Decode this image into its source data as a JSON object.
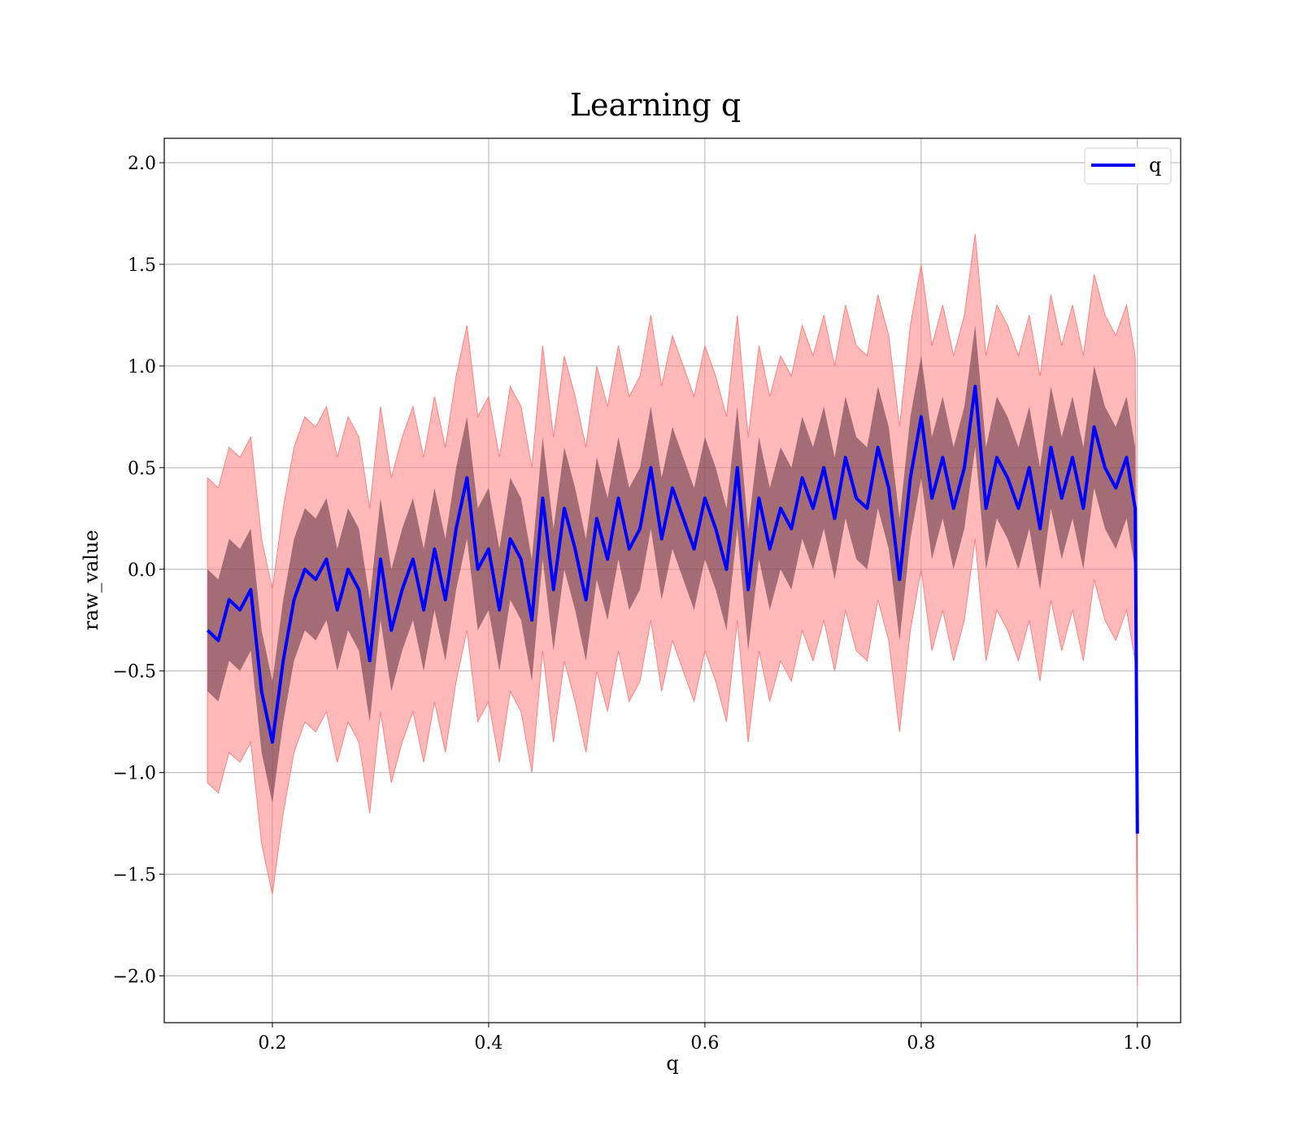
{
  "chart_data": {
    "type": "line",
    "title": "Learning q",
    "xlabel": "q",
    "ylabel": "raw_value",
    "xlim": [
      0.1,
      1.04
    ],
    "ylim": [
      -2.23,
      2.12
    ],
    "x_ticks": [
      0.2,
      0.4,
      0.6,
      0.8,
      1.0
    ],
    "x_tick_labels": [
      "0.2",
      "0.4",
      "0.6",
      "0.8",
      "1.0"
    ],
    "y_ticks": [
      -2.0,
      -1.5,
      -1.0,
      -0.5,
      0.0,
      0.5,
      1.0,
      1.5,
      2.0
    ],
    "y_tick_labels": [
      "−2.0",
      "−1.5",
      "−1.0",
      "−0.5",
      "0.0",
      "0.5",
      "1.0",
      "1.5",
      "2.0"
    ],
    "grid": true,
    "legend": {
      "position": "top-right",
      "entries": [
        "q"
      ]
    },
    "colors": {
      "line": "#0000ff",
      "outer_band": "#ff8080",
      "inner_band": "#5a3040",
      "grid": "#b0b0b0"
    },
    "series": [
      {
        "name": "q",
        "x": [
          0.14,
          0.15,
          0.16,
          0.17,
          0.18,
          0.19,
          0.2,
          0.21,
          0.22,
          0.23,
          0.24,
          0.25,
          0.26,
          0.27,
          0.28,
          0.29,
          0.3,
          0.31,
          0.32,
          0.33,
          0.34,
          0.35,
          0.36,
          0.37,
          0.38,
          0.39,
          0.4,
          0.41,
          0.42,
          0.43,
          0.44,
          0.45,
          0.46,
          0.47,
          0.48,
          0.49,
          0.5,
          0.51,
          0.52,
          0.53,
          0.54,
          0.55,
          0.56,
          0.57,
          0.58,
          0.59,
          0.6,
          0.61,
          0.62,
          0.63,
          0.64,
          0.65,
          0.66,
          0.67,
          0.68,
          0.69,
          0.7,
          0.71,
          0.72,
          0.73,
          0.74,
          0.75,
          0.76,
          0.77,
          0.78,
          0.79,
          0.8,
          0.81,
          0.82,
          0.83,
          0.84,
          0.85,
          0.86,
          0.87,
          0.88,
          0.89,
          0.9,
          0.91,
          0.92,
          0.93,
          0.94,
          0.95,
          0.96,
          0.97,
          0.98,
          0.99,
          0.998,
          1.0
        ],
        "values": [
          -0.3,
          -0.35,
          -0.15,
          -0.2,
          -0.1,
          -0.6,
          -0.85,
          -0.45,
          -0.15,
          0.0,
          -0.05,
          0.05,
          -0.2,
          0.0,
          -0.1,
          -0.45,
          0.05,
          -0.3,
          -0.1,
          0.05,
          -0.2,
          0.1,
          -0.15,
          0.2,
          0.45,
          0.0,
          0.1,
          -0.2,
          0.15,
          0.05,
          -0.25,
          0.35,
          -0.1,
          0.3,
          0.1,
          -0.15,
          0.25,
          0.05,
          0.35,
          0.1,
          0.2,
          0.5,
          0.15,
          0.4,
          0.25,
          0.1,
          0.35,
          0.2,
          0.0,
          0.5,
          -0.1,
          0.35,
          0.1,
          0.3,
          0.2,
          0.45,
          0.3,
          0.5,
          0.25,
          0.55,
          0.35,
          0.3,
          0.6,
          0.4,
          -0.05,
          0.45,
          0.75,
          0.35,
          0.55,
          0.3,
          0.5,
          0.9,
          0.3,
          0.55,
          0.45,
          0.3,
          0.5,
          0.2,
          0.6,
          0.35,
          0.55,
          0.3,
          0.7,
          0.5,
          0.4,
          0.55,
          0.3,
          -1.3
        ],
        "band_inner": {
          "lower": -0.3,
          "upper": 0.3
        },
        "band_outer": {
          "lower": -0.75,
          "upper": 0.75
        }
      }
    ]
  }
}
